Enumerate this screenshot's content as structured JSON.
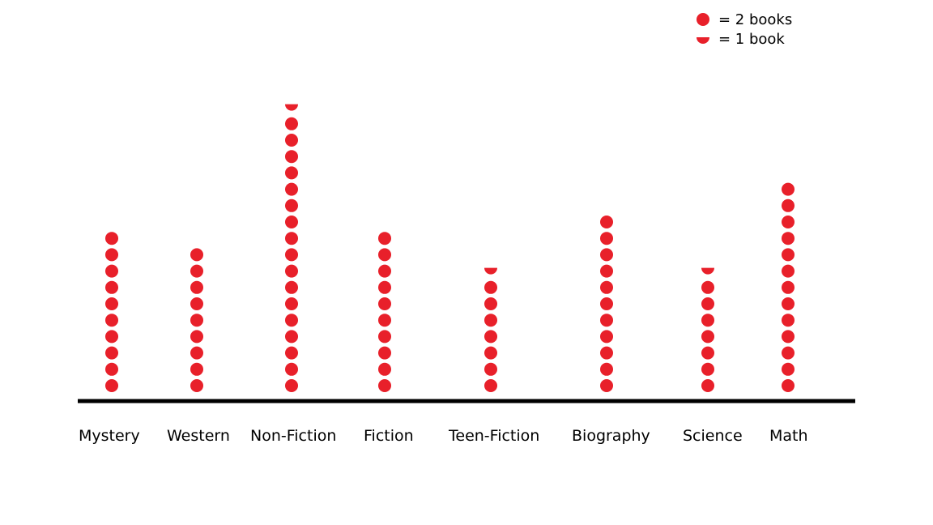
{
  "chart_data": {
    "type": "pictograph",
    "categories": [
      "Mystery",
      "Western",
      "Non-Fiction",
      "Fiction",
      "Teen-Fiction",
      "Biography",
      "Science",
      "Math"
    ],
    "values": [
      20,
      18,
      35,
      20,
      15,
      22,
      15,
      26
    ],
    "symbol_color": "#e8202a",
    "axis_color": "#000000",
    "legend": {
      "position": "top-right",
      "items": [
        {
          "symbol": "full-dot",
          "label": "= 2 books"
        },
        {
          "symbol": "half-dot",
          "label": "= 1 book"
        }
      ]
    }
  }
}
